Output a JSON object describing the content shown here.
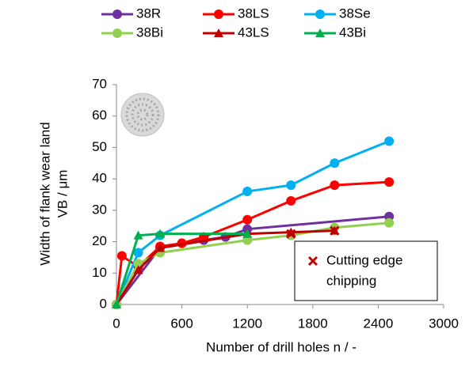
{
  "chart_data": {
    "type": "line",
    "x_label": "Number of drill holes n / -",
    "y_label": [
      "Width of flank wear  land",
      "VB / μm"
    ],
    "xlim": [
      0,
      3000
    ],
    "xticks": [
      0,
      600,
      1200,
      1800,
      2400,
      3000
    ],
    "ylim": [
      0,
      70
    ],
    "yticks": [
      0,
      10,
      20,
      30,
      40,
      50,
      60,
      70
    ],
    "grid": false,
    "series": [
      {
        "name": "38R",
        "color": "#7030a0",
        "marker": "circle",
        "x": [
          0,
          400,
          600,
          800,
          1000,
          1200,
          2500
        ],
        "values": [
          0,
          18,
          19.5,
          20.5,
          21.5,
          24,
          28
        ]
      },
      {
        "name": "38LS",
        "color": "#ff0000",
        "marker": "circle",
        "x": [
          0,
          50,
          200,
          400,
          600,
          800,
          1200,
          1600,
          2000,
          2500
        ],
        "values": [
          0,
          15.5,
          12,
          18.5,
          19.5,
          21.5,
          27,
          33,
          38,
          39
        ]
      },
      {
        "name": "38Se",
        "color": "#00b0f0",
        "marker": "circle",
        "x": [
          0,
          200,
          400,
          1200,
          1600,
          2000,
          2500
        ],
        "values": [
          0,
          16.5,
          22,
          36,
          38,
          45,
          52
        ]
      },
      {
        "name": "38Bi",
        "color": "#92d050",
        "marker": "circle",
        "x": [
          0,
          200,
          400,
          1200,
          1600,
          2000,
          2500
        ],
        "values": [
          0,
          13,
          16.5,
          20.5,
          22,
          24.5,
          26
        ]
      },
      {
        "name": "43LS",
        "color": "#c00000",
        "marker": "triangle",
        "x": [
          0,
          200,
          400,
          1200,
          1600,
          2000
        ],
        "values": [
          0,
          11,
          18,
          22.5,
          23,
          23.5
        ]
      },
      {
        "name": "43Bi",
        "color": "#00b050",
        "marker": "triangle",
        "x": [
          0,
          200,
          400,
          1200
        ],
        "values": [
          0,
          22,
          22.5,
          22.5
        ]
      }
    ],
    "chipping": {
      "label": [
        "Cutting edge",
        "chipping"
      ],
      "color": "#c00000",
      "x": [
        1600,
        2000
      ],
      "values": [
        22.5,
        23.5
      ]
    }
  }
}
